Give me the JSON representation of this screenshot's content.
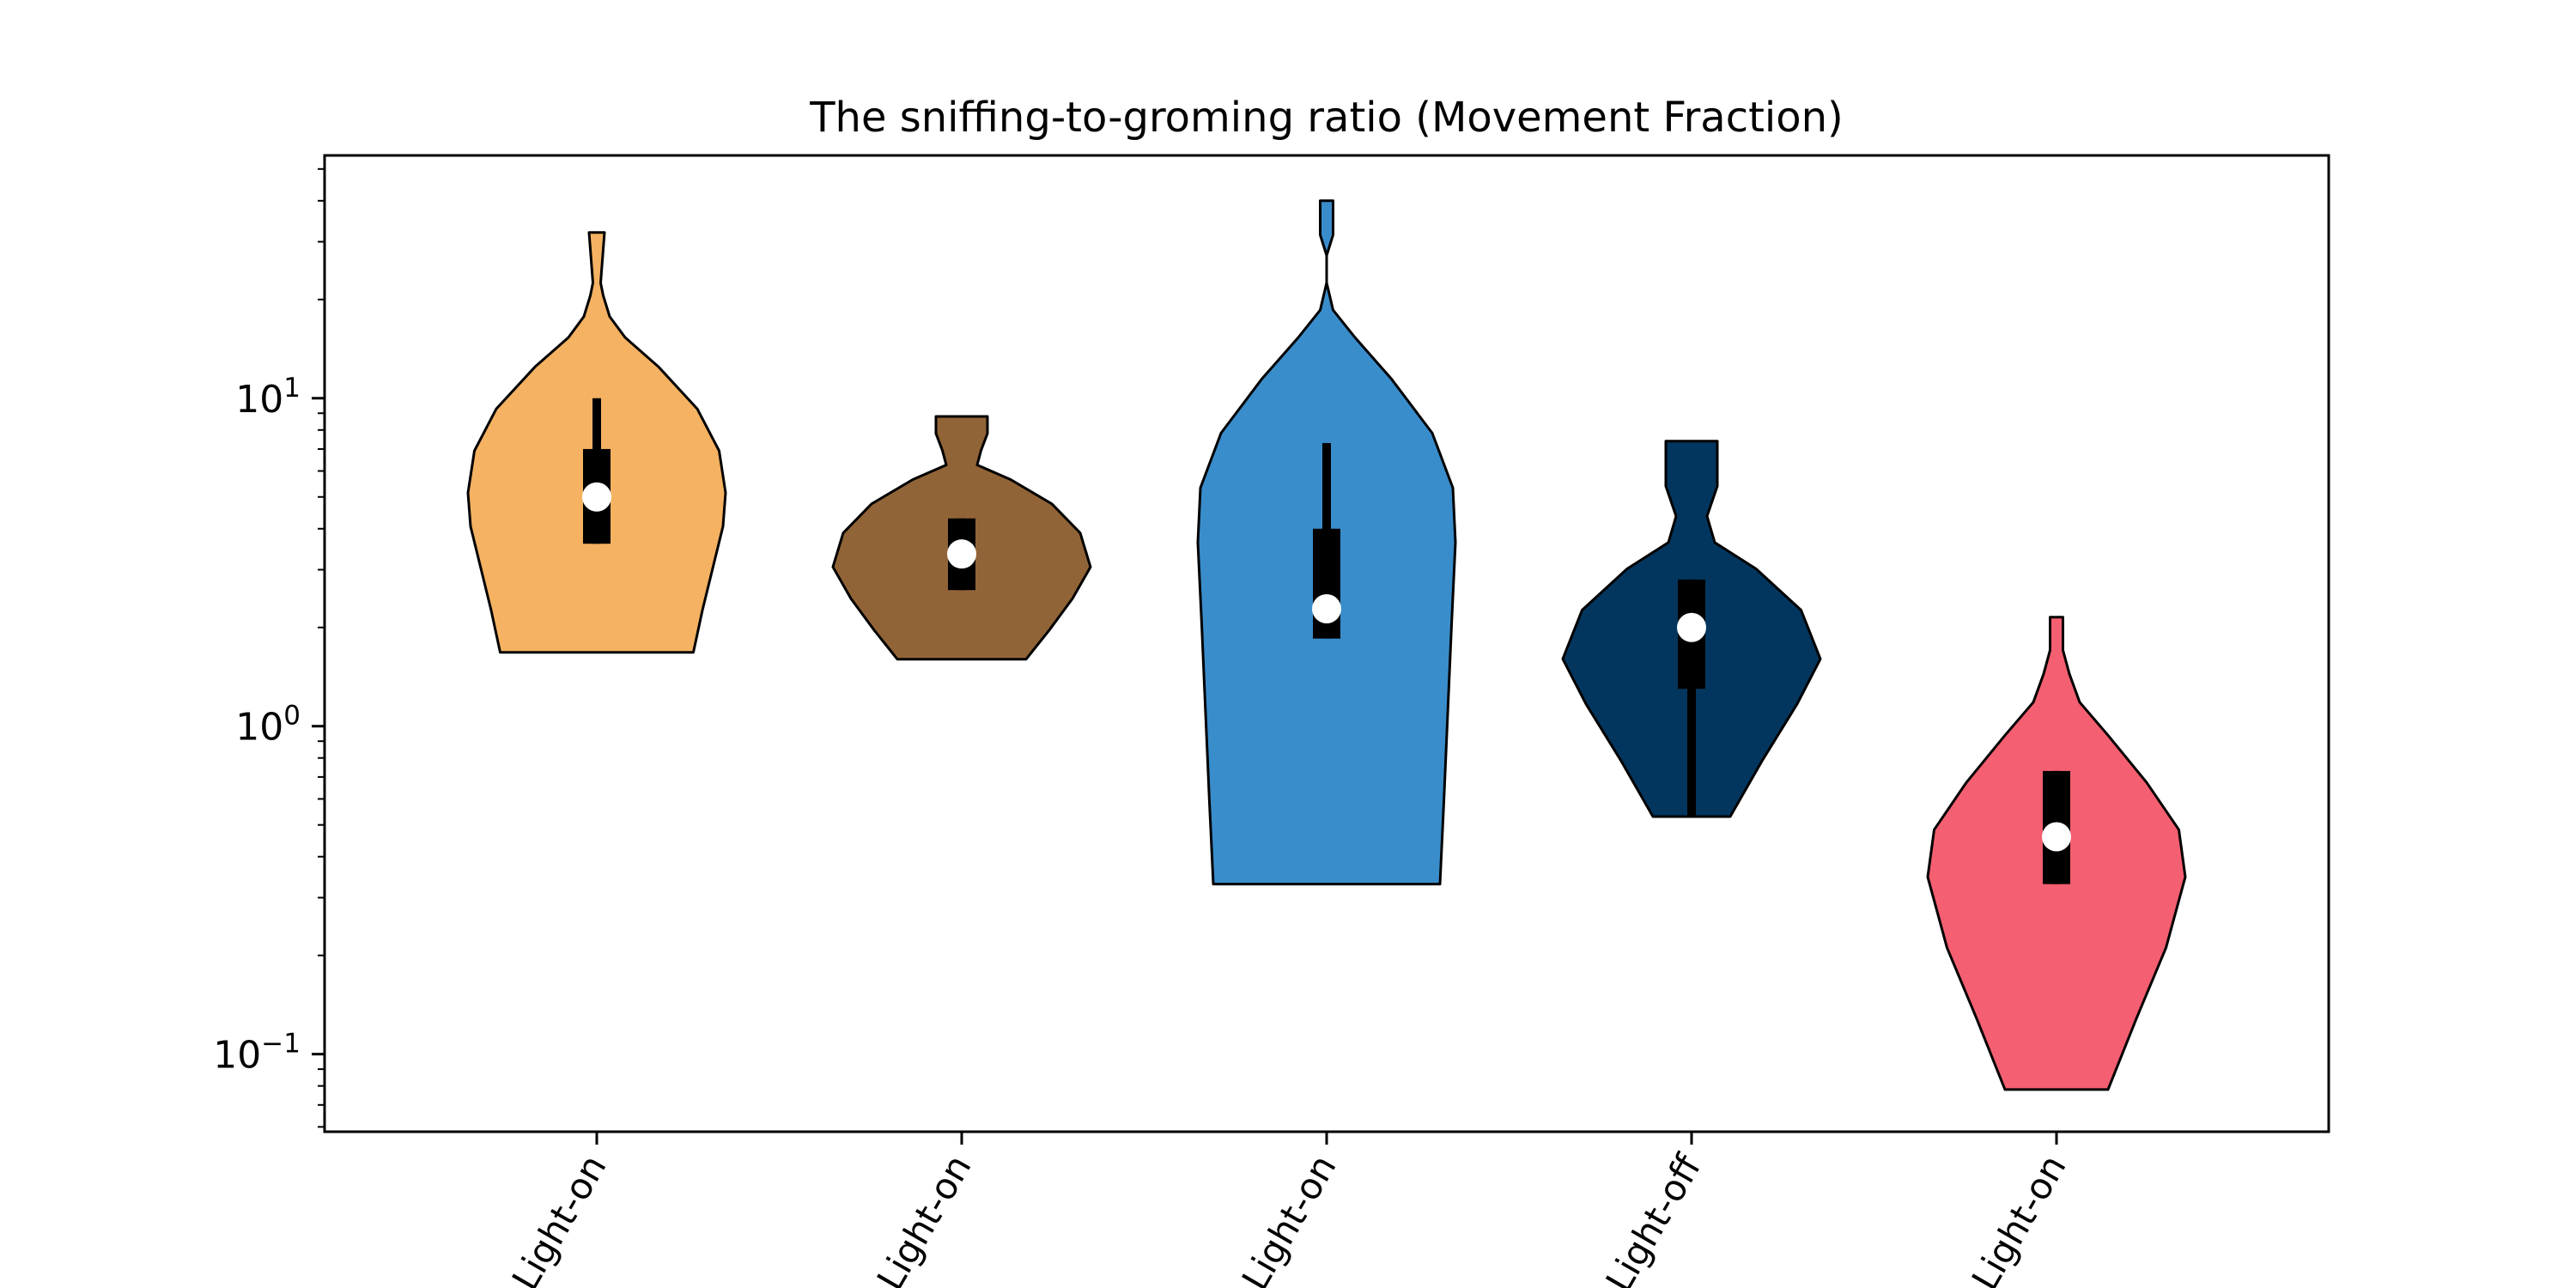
{
  "chart_data": {
    "type": "violin",
    "title": "The sniffing-to-groming ratio (Movement Fraction)",
    "xlabel": "",
    "ylabel": "",
    "yscale": "log",
    "ylim": [
      0.058,
      55
    ],
    "yticks": [
      {
        "value": 0.1,
        "base": "10",
        "exp": "−1"
      },
      {
        "value": 1,
        "base": "10",
        "exp": "0"
      },
      {
        "value": 10,
        "base": "10",
        "exp": "1"
      }
    ],
    "grid": false,
    "legend": "none",
    "categories": [
      "Light-on",
      "Light-on",
      "Light-on",
      "Light-off",
      "Light-on"
    ],
    "series": [
      {
        "color": "#F4B262",
        "min": 1.68,
        "q1": 3.6,
        "median": 5.0,
        "q3": 7.0,
        "whisker_high": 10.0,
        "max": 32,
        "profile": [
          [
            0,
            0.75
          ],
          [
            0.1,
            0.82
          ],
          [
            0.2,
            0.9
          ],
          [
            0.3,
            0.98
          ],
          [
            0.38,
            1.0
          ],
          [
            0.48,
            0.95
          ],
          [
            0.58,
            0.78
          ],
          [
            0.68,
            0.48
          ],
          [
            0.75,
            0.22
          ],
          [
            0.8,
            0.1
          ],
          [
            0.85,
            0.05
          ],
          [
            0.88,
            0.03
          ],
          [
            0.92,
            0.04
          ],
          [
            0.96,
            0.05
          ],
          [
            1,
            0.06
          ]
        ]
      },
      {
        "color": "#916437",
        "min": 1.6,
        "q1": 2.6,
        "median": 3.35,
        "q3": 4.3,
        "whisker_high": 4.3,
        "max": 8.8,
        "profile": [
          [
            0,
            0.5
          ],
          [
            0.12,
            0.68
          ],
          [
            0.25,
            0.86
          ],
          [
            0.38,
            1.0
          ],
          [
            0.52,
            0.92
          ],
          [
            0.64,
            0.7
          ],
          [
            0.74,
            0.38
          ],
          [
            0.8,
            0.12
          ],
          [
            0.86,
            0.15
          ],
          [
            0.93,
            0.2
          ],
          [
            1,
            0.2
          ]
        ]
      },
      {
        "color": "#3A8DCB",
        "min": 0.33,
        "q1": 1.85,
        "median": 2.28,
        "q3": 4.0,
        "whisker_high": 7.3,
        "max": 40,
        "profile": [
          [
            0,
            0.88
          ],
          [
            0.12,
            0.91
          ],
          [
            0.25,
            0.94
          ],
          [
            0.38,
            0.97
          ],
          [
            0.5,
            1.0
          ],
          [
            0.58,
            0.98
          ],
          [
            0.66,
            0.82
          ],
          [
            0.74,
            0.5
          ],
          [
            0.8,
            0.22
          ],
          [
            0.84,
            0.05
          ],
          [
            0.88,
            0.0
          ],
          [
            0.92,
            0.0
          ],
          [
            0.95,
            0.05
          ],
          [
            1,
            0.05
          ]
        ]
      },
      {
        "color": "#03365E",
        "min": 0.53,
        "q1": 1.3,
        "median": 2.0,
        "q3": 2.8,
        "whisker_high": 2.8,
        "whisker_low": 0.53,
        "max": 7.4,
        "profile": [
          [
            0,
            0.3
          ],
          [
            0.15,
            0.55
          ],
          [
            0.3,
            0.82
          ],
          [
            0.42,
            1.0
          ],
          [
            0.55,
            0.85
          ],
          [
            0.66,
            0.5
          ],
          [
            0.73,
            0.18
          ],
          [
            0.8,
            0.12
          ],
          [
            0.88,
            0.2
          ],
          [
            0.94,
            0.2
          ],
          [
            1,
            0.2
          ]
        ]
      },
      {
        "color": "#F45F71",
        "min": 0.078,
        "q1": 0.33,
        "median": 0.46,
        "q3": 0.73,
        "whisker_high": 0.73,
        "max": 2.15,
        "profile": [
          [
            0,
            0.4
          ],
          [
            0.15,
            0.62
          ],
          [
            0.3,
            0.85
          ],
          [
            0.45,
            1.0
          ],
          [
            0.55,
            0.95
          ],
          [
            0.65,
            0.7
          ],
          [
            0.75,
            0.4
          ],
          [
            0.82,
            0.18
          ],
          [
            0.88,
            0.1
          ],
          [
            0.93,
            0.05
          ],
          [
            1,
            0.05
          ]
        ]
      }
    ]
  }
}
